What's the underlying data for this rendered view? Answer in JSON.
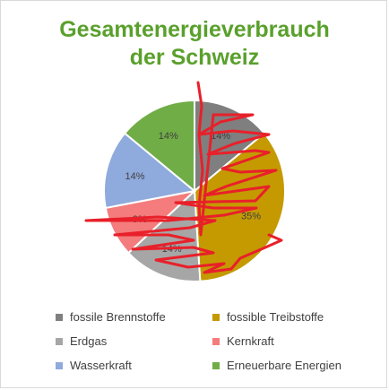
{
  "chart_data": {
    "type": "pie",
    "title_line1": "Gesamtenergieverbrauch",
    "title_line2": "der Schweiz",
    "slices": [
      {
        "name": "fossile Brennstoffe",
        "value": 14,
        "label": "14%",
        "color": "#7f7f7f"
      },
      {
        "name": "fossible Treibstoffe",
        "value": 35,
        "label": "35%",
        "color": "#c49a00"
      },
      {
        "name": "Erdgas",
        "value": 14,
        "label": "14%",
        "color": "#a6a6a6"
      },
      {
        "name": "Kernkraft",
        "value": 9,
        "label": "9%",
        "color": "#f47c7c"
      },
      {
        "name": "Wasserkraft",
        "value": 14,
        "label": "14%",
        "color": "#8faadc"
      },
      {
        "name": "Erneuerbare Energien",
        "value": 14,
        "label": "14%",
        "color": "#70ad47"
      }
    ],
    "legend_position": "bottom"
  },
  "overlay": {
    "scribble_color": "#e8202a"
  }
}
